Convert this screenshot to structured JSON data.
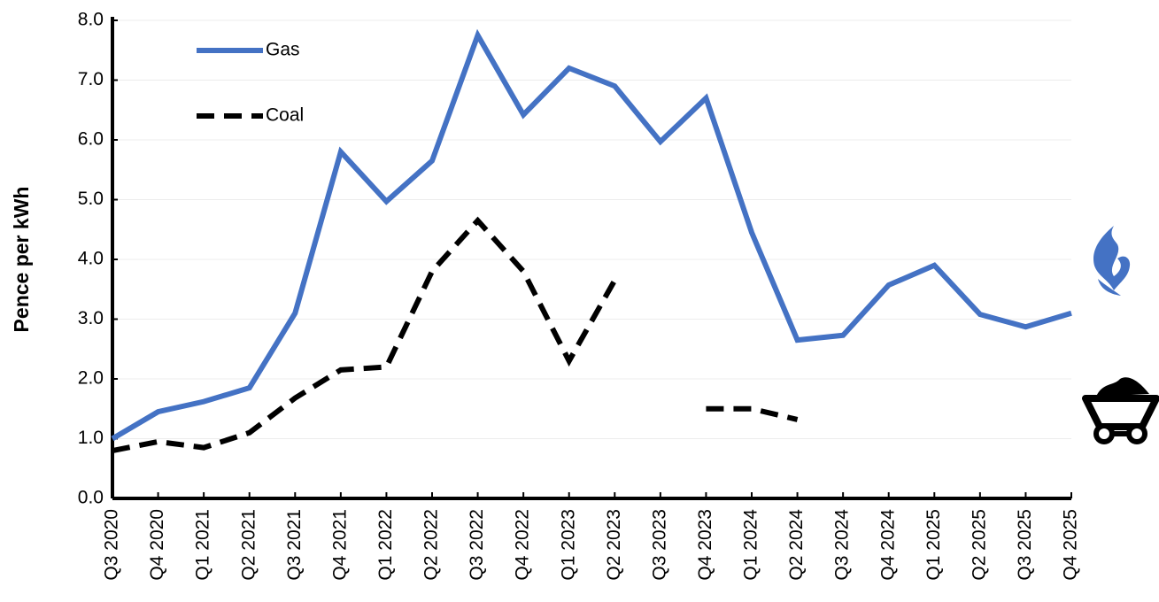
{
  "chart_data": {
    "type": "line",
    "y_label": "Pence per kWh",
    "categories": [
      "Q3 2020",
      "Q4 2020",
      "Q1 2021",
      "Q2 2021",
      "Q3 2021",
      "Q4 2021",
      "Q1 2022",
      "Q2 2022",
      "Q3 2022",
      "Q4 2022",
      "Q1 2023",
      "Q2 2023",
      "Q3 2023",
      "Q4 2023",
      "Q1 2024",
      "Q2 2024",
      "Q3 2024",
      "Q4 2024",
      "Q1 2025",
      "Q2 2025",
      "Q3 2025",
      "Q4 2025"
    ],
    "series": [
      {
        "name": "Gas",
        "color": "#4472c4",
        "dash": "solid",
        "values": [
          1.0,
          1.45,
          1.62,
          1.85,
          3.1,
          5.8,
          4.97,
          5.65,
          7.75,
          6.42,
          7.2,
          6.9,
          5.97,
          6.7,
          4.45,
          2.65,
          2.73,
          3.57,
          3.9,
          3.08,
          2.87,
          3.1
        ]
      },
      {
        "name": "Coal",
        "color": "#000000",
        "dash": "dashed",
        "values": [
          0.8,
          0.95,
          0.85,
          1.1,
          1.68,
          2.15,
          2.2,
          3.8,
          4.65,
          3.8,
          2.3,
          3.65,
          null,
          1.5,
          1.5,
          1.32,
          null,
          null,
          null,
          null,
          null,
          null
        ]
      }
    ],
    "ylim": [
      0,
      8
    ],
    "yticks": [
      {
        "value": 0,
        "label": "0.0"
      },
      {
        "value": 1,
        "label": "1.0"
      },
      {
        "value": 2,
        "label": "2.0"
      },
      {
        "value": 3,
        "label": "3.0"
      },
      {
        "value": 4,
        "label": "4.0"
      },
      {
        "value": 5,
        "label": "5.0"
      },
      {
        "value": 6,
        "label": "6.0"
      },
      {
        "value": 7,
        "label": "7.0"
      },
      {
        "value": 8,
        "label": "8.0"
      }
    ],
    "grid": true,
    "legend": "upper left"
  }
}
